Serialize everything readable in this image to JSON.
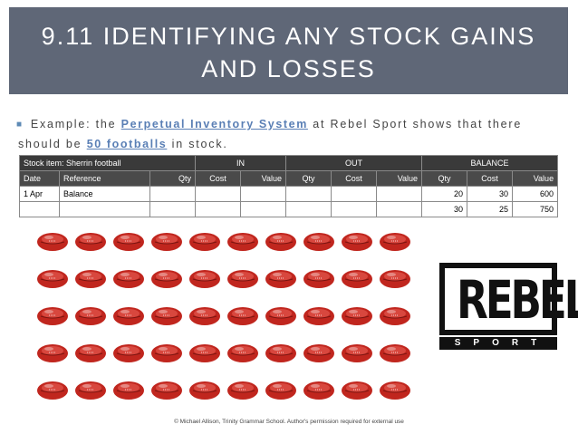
{
  "slide": {
    "title_line1": "9.11 IDENTIFYING ANY STOCK GAINS",
    "title_line2": "AND LOSSES",
    "bullet": {
      "part1": "Example: the ",
      "link1": "Perpetual Inventory System",
      "part2": " at Rebel Sport shows that there",
      "part3": "should be ",
      "link2": "50 footballs",
      "part4": " in stock."
    },
    "footer": "© Michael Allison, Trinity Grammar School. Author's permission required for external use"
  },
  "ledger": {
    "stock_item": "Stock item:  Sherrin football",
    "group_in": "IN",
    "group_out": "OUT",
    "group_balance": "BALANCE",
    "col_date": "Date",
    "col_reference": "Reference",
    "col_qty": "Qty",
    "col_cost": "Cost",
    "col_value": "Value",
    "rows": [
      {
        "date": "1 Apr",
        "reference": "Balance",
        "bal_qty": "20",
        "bal_cost": "30",
        "bal_value": "600"
      },
      {
        "date": "",
        "reference": "",
        "bal_qty": "30",
        "bal_cost": "25",
        "bal_value": "750"
      }
    ]
  },
  "footballs": {
    "rows": 5,
    "per_row": 10,
    "color": "#c0261e"
  },
  "logo": {
    "word": "REBEL",
    "sub": "SPORT"
  }
}
